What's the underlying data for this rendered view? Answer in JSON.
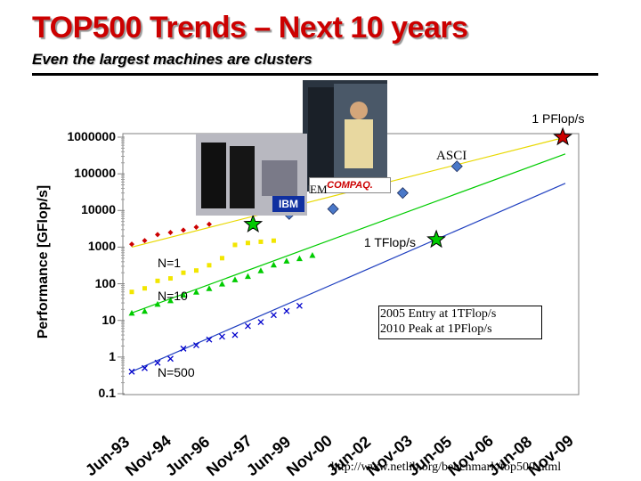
{
  "slide": {
    "title": "TOP500 Trends – Next 10 years",
    "subtitle": "Even the largest machines are clusters",
    "url": "http://www.netlib.org/benchmark/top500.html",
    "box_lines": [
      "2005 Entry at 1TFlop/s",
      "2010 Peak at 1PFlop/s"
    ],
    "photo_labels": {
      "compaq": "COMPAQ.",
      "ibm": "IBM",
      "eml": "EM"
    },
    "accent_color": "#cc0000"
  },
  "chart_data": {
    "type": "line",
    "yscale": "log",
    "ylabel": "Performance [GFlop/s]",
    "ylim": [
      0.1,
      1000000
    ],
    "y_ticks": [
      "0.1",
      "1",
      "10",
      "100",
      "1000",
      "10000",
      "100000",
      "1000000"
    ],
    "x_ticks": [
      "Jun-93",
      "Nov-94",
      "Jun-96",
      "Nov-97",
      "Jun-99",
      "Nov-00",
      "Jun-02",
      "Nov-03",
      "Jun-05",
      "Nov-06",
      "Jun-08",
      "Nov-09"
    ],
    "xlim": [
      1993.4,
      2010.2
    ],
    "grid": false,
    "series": [
      {
        "name": "N=1",
        "color": "#cc0000",
        "marker": "diamond",
        "x": [
          1993.4,
          1993.9,
          1994.4,
          1994.9,
          1995.4,
          1995.9,
          1996.4
        ],
        "y": [
          1200,
          1500,
          2200,
          2500,
          2900,
          3500,
          4200
        ]
      },
      {
        "name": "N=10",
        "color": "#f2e600",
        "marker": "square",
        "x": [
          1993.4,
          1993.9,
          1994.4,
          1994.9,
          1995.4,
          1995.9,
          1996.4,
          1996.9,
          1997.4,
          1997.9,
          1998.4,
          1998.9
        ],
        "y": [
          60,
          75,
          120,
          140,
          200,
          230,
          320,
          500,
          1150,
          1300,
          1400,
          1500
        ]
      },
      {
        "name": "N=10",
        "color": "#00cc00",
        "marker": "triangle",
        "x": [
          1993.4,
          1993.9,
          1994.4,
          1994.9,
          1995.4,
          1995.9,
          1996.4,
          1996.9,
          1997.4,
          1997.9,
          1998.4,
          1998.9,
          1999.4,
          1999.9,
          2000.4
        ],
        "y": [
          16,
          18,
          28,
          35,
          50,
          60,
          75,
          100,
          130,
          160,
          230,
          330,
          420,
          490,
          600
        ]
      },
      {
        "name": "N=500",
        "color": "#0000cc",
        "marker": "x",
        "x": [
          1993.4,
          1993.9,
          1994.4,
          1994.9,
          1995.4,
          1995.9,
          1996.4,
          1996.9,
          1997.4,
          1997.9,
          1998.4,
          1998.9,
          1999.4,
          1999.9
        ],
        "y": [
          0.4,
          0.5,
          0.7,
          0.9,
          1.7,
          2.1,
          3.0,
          3.6,
          4.0,
          7.0,
          9.0,
          14.0,
          18.0,
          25.0
        ]
      },
      {
        "name": "ASCI",
        "color": "#4a78c8",
        "marker": "diamond-large",
        "x": [
          1999.5,
          2001.2,
          2003.9,
          2006.0
        ],
        "y": [
          8000,
          11000,
          30000,
          160000
        ]
      }
    ],
    "trend_lines": [
      {
        "color": "#e8d800",
        "from": [
          1993.4,
          1000
        ],
        "to": [
          2010.2,
          1000000
        ]
      },
      {
        "color": "#00cc00",
        "from": [
          1993.4,
          16
        ],
        "to": [
          2010.2,
          350000
        ]
      },
      {
        "color": "#2040c0",
        "from": [
          1993.4,
          0.4
        ],
        "to": [
          2010.2,
          55000
        ]
      }
    ],
    "stars": [
      {
        "color": "#00cc00",
        "x": 1998.1,
        "y": 4200
      },
      {
        "color": "#00cc00",
        "x": 2005.2,
        "y": 1600
      },
      {
        "color": "#cc0000",
        "x": 2010.1,
        "y": 1000000
      }
    ],
    "annotations": [
      {
        "text": "1 PFlop/s",
        "x": 2008.9,
        "y": 3000000
      },
      {
        "text": "ASCI",
        "x": 2005.2,
        "y": 300000
      },
      {
        "text": "1 TFlop/s",
        "x": 2002.4,
        "y": 1300
      },
      {
        "text": "N=1",
        "x": 1994.4,
        "y": 350
      },
      {
        "text": "N=10",
        "x": 1994.4,
        "y": 45
      },
      {
        "text": "N=500",
        "x": 1994.4,
        "y": 0.36
      }
    ]
  }
}
